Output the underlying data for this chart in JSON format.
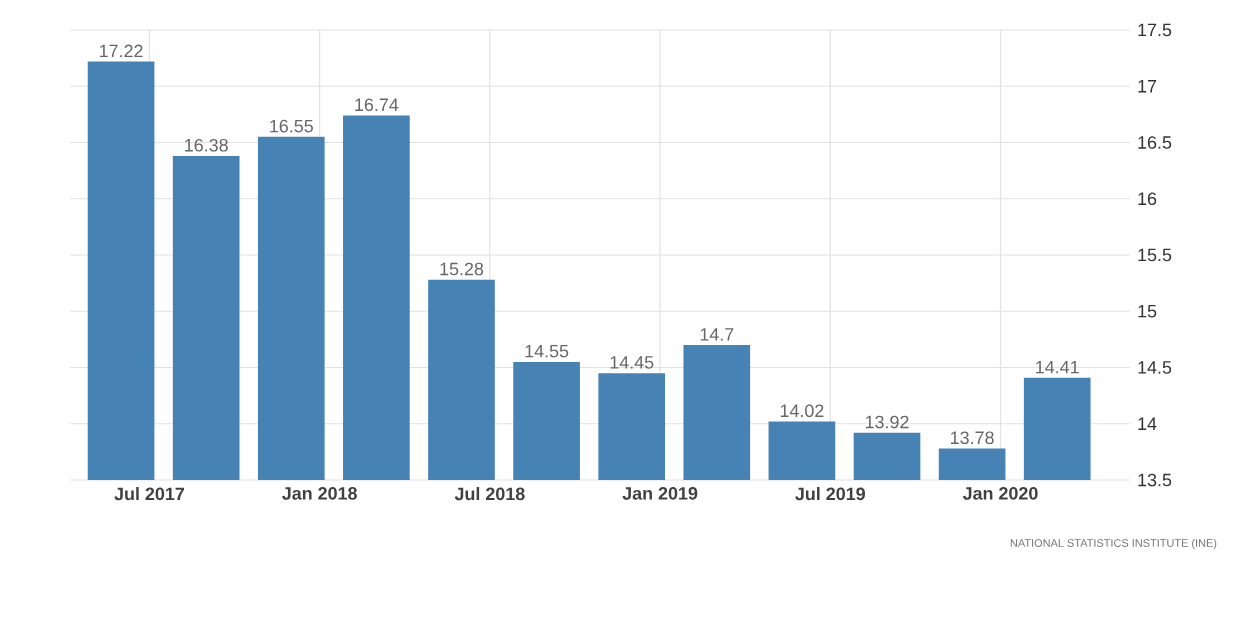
{
  "chart_data": {
    "type": "bar",
    "x": [
      "2017-06",
      "2017-09",
      "2017-12",
      "2018-03",
      "2018-06",
      "2018-09",
      "2018-12",
      "2019-03",
      "2019-06",
      "2019-09",
      "2019-12",
      "2020-03"
    ],
    "values": [
      17.22,
      16.38,
      16.55,
      16.74,
      15.28,
      14.55,
      14.45,
      14.7,
      14.02,
      13.92,
      13.78,
      14.41
    ],
    "color": "#4682b4",
    "data_labels": true,
    "xlim": [
      "2017-04-07",
      "2020-05-18"
    ],
    "xticks": [
      {
        "value": "2017-07",
        "label": "Jul 2017"
      },
      {
        "value": "2018-01",
        "label": "Jan 2018"
      },
      {
        "value": "2018-07",
        "label": "Jul 2018"
      },
      {
        "value": "2019-01",
        "label": "Jan 2019"
      },
      {
        "value": "2019-07",
        "label": "Jul 2019"
      },
      {
        "value": "2020-01",
        "label": "Jan 2020"
      }
    ],
    "ylim": [
      13.5,
      17.5
    ],
    "yticks": [
      13.5,
      14,
      14.5,
      15,
      15.5,
      16,
      16.5,
      17,
      17.5
    ],
    "grid": true,
    "annotations": [
      "NATIONAL STATISTICS INSTITUTE (INE)"
    ]
  }
}
